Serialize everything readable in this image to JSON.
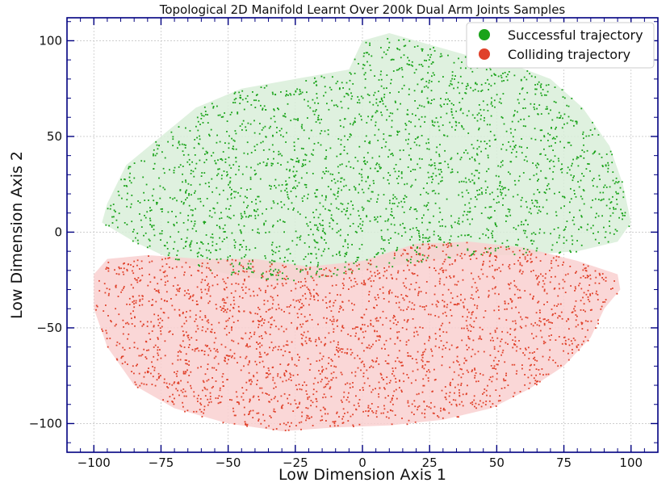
{
  "chart_data": {
    "type": "scatter",
    "title": "Topological 2D Manifold Learnt Over 200k Dual Arm Joints Samples",
    "xlabel": "Low Dimension Axis 1",
    "ylabel": "Low Dimension Axis 2",
    "xlim": [
      -110,
      110
    ],
    "ylim": [
      -115,
      112
    ],
    "xticks": [
      -100,
      -75,
      -50,
      -25,
      0,
      25,
      50,
      75,
      100
    ],
    "xtick_labels": [
      "−100",
      "−75",
      "−50",
      "−25",
      "0",
      "25",
      "50",
      "75",
      "100"
    ],
    "yticks": [
      -100,
      -50,
      0,
      50,
      100
    ],
    "ytick_labels": [
      "−100",
      "−50",
      "0",
      "50",
      "100"
    ],
    "grid": true,
    "legend_position": "top-right",
    "series": [
      {
        "name": "Successful trajectory",
        "color": "#1aa31a",
        "fill_color": "#d9eed9",
        "hull": [
          [
            -95,
            15
          ],
          [
            -88,
            35
          ],
          [
            -75,
            50
          ],
          [
            -62,
            65
          ],
          [
            -45,
            75
          ],
          [
            -25,
            80
          ],
          [
            -5,
            85
          ],
          [
            0,
            100
          ],
          [
            10,
            104
          ],
          [
            25,
            98
          ],
          [
            40,
            92
          ],
          [
            55,
            88
          ],
          [
            70,
            80
          ],
          [
            82,
            65
          ],
          [
            92,
            45
          ],
          [
            97,
            25
          ],
          [
            100,
            5
          ],
          [
            95,
            -5
          ],
          [
            80,
            -10
          ],
          [
            60,
            -12
          ],
          [
            40,
            -12
          ],
          [
            20,
            -16
          ],
          [
            0,
            -20
          ],
          [
            -15,
            -24
          ],
          [
            -30,
            -26
          ],
          [
            -50,
            -22
          ],
          [
            -70,
            -15
          ],
          [
            -85,
            -5
          ],
          [
            -97,
            5
          ]
        ],
        "cx": 5,
        "cy": 40,
        "rx": 85,
        "ry": 50,
        "count": 2400,
        "density_scale": 0.85
      },
      {
        "name": "Colliding trajectory",
        "color": "#e0412a",
        "fill_color": "#f9d0d0",
        "hull": [
          [
            -100,
            -22
          ],
          [
            -95,
            -14
          ],
          [
            -80,
            -12
          ],
          [
            -60,
            -14
          ],
          [
            -40,
            -14
          ],
          [
            -20,
            -18
          ],
          [
            0,
            -15
          ],
          [
            20,
            -6
          ],
          [
            40,
            -5
          ],
          [
            60,
            -8
          ],
          [
            80,
            -15
          ],
          [
            95,
            -22
          ],
          [
            96,
            -30
          ],
          [
            90,
            -40
          ],
          [
            85,
            -55
          ],
          [
            75,
            -70
          ],
          [
            62,
            -82
          ],
          [
            48,
            -92
          ],
          [
            30,
            -98
          ],
          [
            10,
            -101
          ],
          [
            -10,
            -102
          ],
          [
            -30,
            -104
          ],
          [
            -50,
            -100
          ],
          [
            -70,
            -92
          ],
          [
            -85,
            -80
          ],
          [
            -95,
            -60
          ],
          [
            -100,
            -40
          ]
        ],
        "cx": 0,
        "cy": -55,
        "rx": 90,
        "ry": 42,
        "count": 2400,
        "density_scale": 0.85
      }
    ]
  }
}
